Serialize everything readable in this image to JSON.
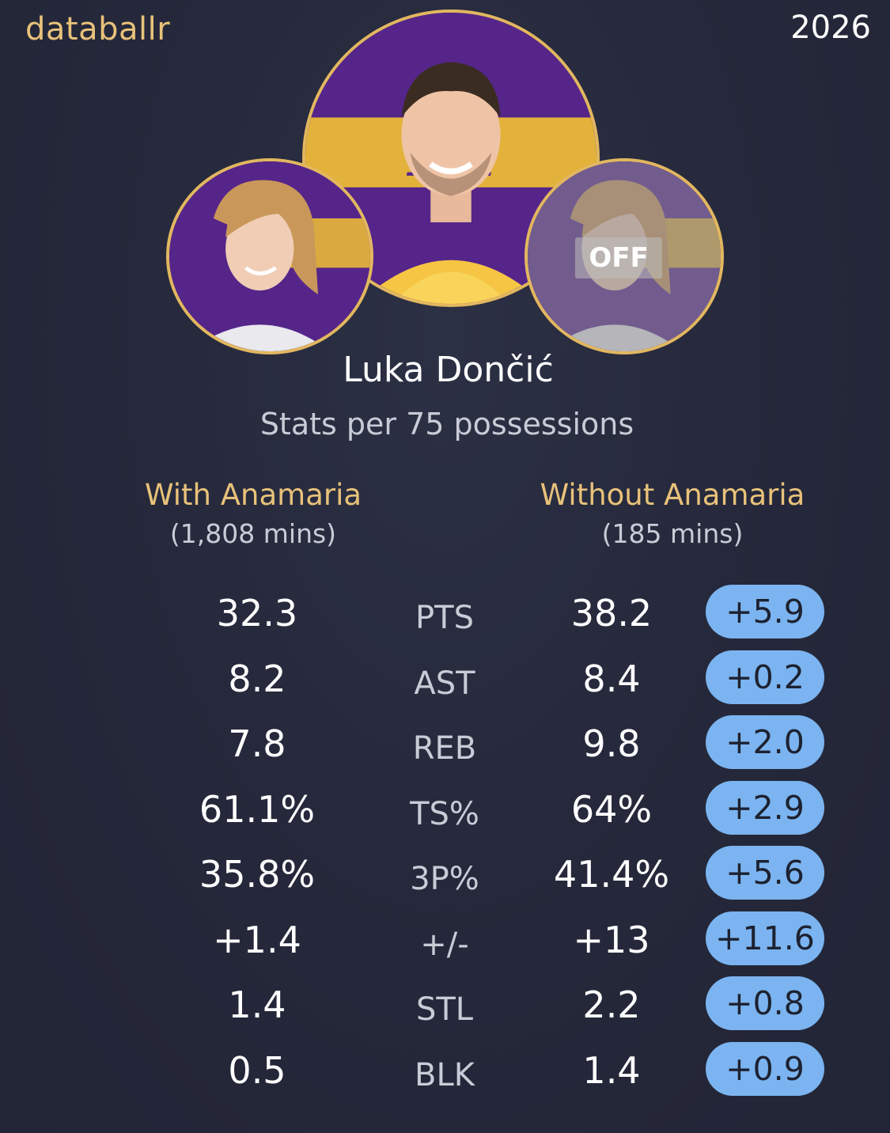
{
  "header": {
    "brand": "databallr",
    "year": "2026"
  },
  "avatars": {
    "main": "player-portrait",
    "left": "anamaria-portrait",
    "right": "anamaria-portrait-off",
    "off_label": "OFF"
  },
  "player": {
    "name": "Luka Dončić",
    "subtitle": "Stats per 75 possessions"
  },
  "columns": {
    "with": {
      "title": "With Anamaria",
      "minutes": "(1,808 mins)"
    },
    "without": {
      "title": "Without Anamaria",
      "minutes": "(185 mins)"
    }
  },
  "stats": [
    {
      "label": "PTS",
      "with": "32.3",
      "without": "38.2",
      "diff": "+5.9"
    },
    {
      "label": "AST",
      "with": "8.2",
      "without": "8.4",
      "diff": "+0.2"
    },
    {
      "label": "REB",
      "with": "7.8",
      "without": "9.8",
      "diff": "+2.0"
    },
    {
      "label": "TS%",
      "with": "61.1%",
      "without": "64%",
      "diff": "+2.9"
    },
    {
      "label": "3P%",
      "with": "35.8%",
      "without": "41.4%",
      "diff": "+5.6"
    },
    {
      "label": "+/-",
      "with": "+1.4",
      "without": "+13",
      "diff": "+11.6"
    },
    {
      "label": "STL",
      "with": "1.4",
      "without": "2.2",
      "diff": "+0.8"
    },
    {
      "label": "BLK",
      "with": "0.5",
      "without": "1.4",
      "diff": "+0.9"
    }
  ],
  "colors": {
    "background": "#25283a",
    "accent_gold": "#e8c27a",
    "pill_blue": "#7bb4f0",
    "lakers_purple": "#55258a",
    "lakers_gold": "#f2c232"
  }
}
